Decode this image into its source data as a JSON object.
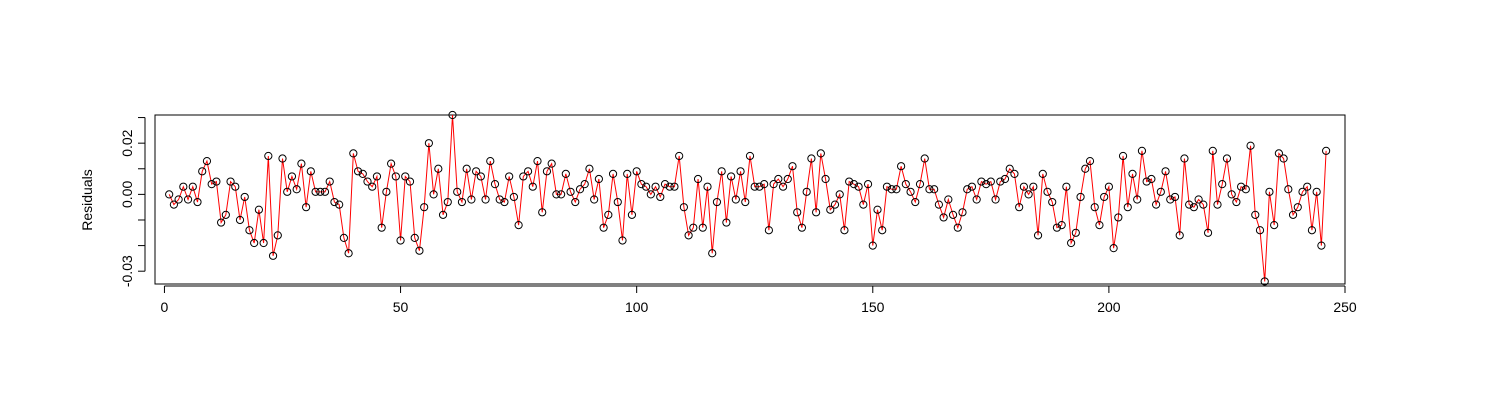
{
  "chart_data": {
    "type": "line",
    "title": "",
    "xlabel": "",
    "ylabel": "Residuals",
    "xlim": [
      -2,
      250
    ],
    "ylim": [
      -0.035,
      0.031
    ],
    "x_ticks": [
      0,
      50,
      100,
      150,
      200,
      250
    ],
    "x_tick_labels": [
      "0",
      "50",
      "100",
      "150",
      "200",
      "250"
    ],
    "y_ticks": [
      -0.03,
      0.0,
      0.02
    ],
    "y_tick_labels": [
      "-0.03",
      "0.00",
      "0.02"
    ],
    "y_minor_ticks": [
      -0.02,
      -0.01,
      0.01,
      0.03
    ],
    "grid": false,
    "legend": "none",
    "line_color": "#ff0000",
    "marker_color": "#000000",
    "x": [
      1,
      2,
      3,
      4,
      5,
      6,
      7,
      8,
      9,
      10,
      11,
      12,
      13,
      14,
      15,
      16,
      17,
      18,
      19,
      20,
      21,
      22,
      23,
      24,
      25,
      26,
      27,
      28,
      29,
      30,
      31,
      32,
      33,
      34,
      35,
      36,
      37,
      38,
      39,
      40,
      41,
      42,
      43,
      44,
      45,
      46,
      47,
      48,
      49,
      50,
      51,
      52,
      53,
      54,
      55,
      56,
      57,
      58,
      59,
      60,
      61,
      62,
      63,
      64,
      65,
      66,
      67,
      68,
      69,
      70,
      71,
      72,
      73,
      74,
      75,
      76,
      77,
      78,
      79,
      80,
      81,
      82,
      83,
      84,
      85,
      86,
      87,
      88,
      89,
      90,
      91,
      92,
      93,
      94,
      95,
      96,
      97,
      98,
      99,
      100,
      101,
      102,
      103,
      104,
      105,
      106,
      107,
      108,
      109,
      110,
      111,
      112,
      113,
      114,
      115,
      116,
      117,
      118,
      119,
      120,
      121,
      122,
      123,
      124,
      125,
      126,
      127,
      128,
      129,
      130,
      131,
      132,
      133,
      134,
      135,
      136,
      137,
      138,
      139,
      140,
      141,
      142,
      143,
      144,
      145,
      146,
      147,
      148,
      149,
      150,
      151,
      152,
      153,
      154,
      155,
      156,
      157,
      158,
      159,
      160,
      161,
      162,
      163,
      164,
      165,
      166,
      167,
      168,
      169,
      170,
      171,
      172,
      173,
      174,
      175,
      176,
      177,
      178,
      179,
      180,
      181,
      182,
      183,
      184,
      185,
      186,
      187,
      188,
      189,
      190,
      191,
      192,
      193,
      194,
      195,
      196,
      197,
      198,
      199,
      200,
      201,
      202,
      203,
      204,
      205,
      206,
      207,
      208,
      209,
      210,
      211,
      212,
      213,
      214,
      215,
      216,
      217,
      218,
      219,
      220,
      221,
      222,
      223,
      224,
      225,
      226,
      227,
      228,
      229,
      230,
      231,
      232,
      233,
      234,
      235,
      236,
      237,
      238,
      239,
      240,
      241,
      242,
      243,
      244,
      245,
      246
    ],
    "y": [
      0.0,
      -0.004,
      -0.002,
      0.003,
      -0.002,
      0.003,
      -0.003,
      0.009,
      0.013,
      0.004,
      0.005,
      -0.011,
      -0.008,
      0.005,
      0.003,
      -0.01,
      -0.001,
      -0.014,
      -0.019,
      -0.006,
      -0.019,
      0.015,
      -0.024,
      -0.016,
      0.014,
      0.001,
      0.007,
      0.002,
      0.012,
      -0.005,
      0.009,
      0.001,
      0.001,
      0.001,
      0.005,
      -0.003,
      -0.004,
      -0.017,
      -0.023,
      0.016,
      0.009,
      0.008,
      0.005,
      0.003,
      0.007,
      -0.013,
      0.001,
      0.012,
      0.007,
      -0.018,
      0.007,
      0.005,
      -0.017,
      -0.022,
      -0.005,
      0.02,
      0.0,
      0.01,
      -0.008,
      -0.003,
      0.031,
      0.001,
      -0.003,
      0.01,
      -0.002,
      0.009,
      0.007,
      -0.002,
      0.013,
      0.004,
      -0.002,
      -0.003,
      0.007,
      -0.001,
      -0.012,
      0.007,
      0.009,
      0.003,
      0.013,
      -0.007,
      0.009,
      0.012,
      0.0,
      0.0,
      0.008,
      0.001,
      -0.003,
      0.002,
      0.004,
      0.01,
      -0.002,
      0.006,
      -0.013,
      -0.008,
      0.008,
      -0.003,
      -0.018,
      0.008,
      -0.008,
      0.009,
      0.004,
      0.003,
      0.0,
      0.003,
      -0.001,
      0.004,
      0.003,
      0.003,
      0.015,
      -0.005,
      -0.016,
      -0.013,
      0.006,
      -0.013,
      0.003,
      -0.023,
      -0.003,
      0.009,
      -0.011,
      0.007,
      -0.002,
      0.009,
      -0.003,
      0.015,
      0.003,
      0.003,
      0.004,
      -0.014,
      0.004,
      0.006,
      0.003,
      0.006,
      0.011,
      -0.007,
      -0.013,
      0.001,
      0.014,
      -0.007,
      0.016,
      0.006,
      -0.006,
      -0.004,
      0.0,
      -0.014,
      0.005,
      0.004,
      0.003,
      -0.004,
      0.004,
      -0.02,
      -0.006,
      -0.014,
      0.003,
      0.002,
      0.002,
      0.011,
      0.004,
      0.001,
      -0.003,
      0.004,
      0.014,
      0.002,
      0.002,
      -0.004,
      -0.009,
      -0.002,
      -0.008,
      -0.013,
      -0.007,
      0.002,
      0.003,
      -0.002,
      0.005,
      0.004,
      0.005,
      -0.002,
      0.005,
      0.006,
      0.01,
      0.008,
      -0.005,
      0.003,
      0.0,
      0.003,
      -0.016,
      0.008,
      0.001,
      -0.003,
      -0.013,
      -0.012,
      0.003,
      -0.019,
      -0.015,
      -0.001,
      0.01,
      0.013,
      -0.005,
      -0.012,
      -0.001,
      0.003,
      -0.021,
      -0.009,
      0.015,
      -0.005,
      0.008,
      -0.002,
      0.017,
      0.005,
      0.006,
      -0.004,
      0.001,
      0.009,
      -0.002,
      -0.001,
      -0.016,
      0.014,
      -0.004,
      -0.005,
      -0.002,
      -0.004,
      -0.015,
      0.017,
      -0.004,
      0.004,
      0.014,
      0.0,
      -0.003,
      0.003,
      0.002,
      0.019,
      -0.008,
      -0.014,
      -0.034,
      0.001,
      -0.012,
      0.016,
      0.014,
      0.002,
      -0.008,
      -0.005,
      0.001,
      0.003,
      -0.014,
      0.001,
      -0.02,
      0.017
    ]
  }
}
